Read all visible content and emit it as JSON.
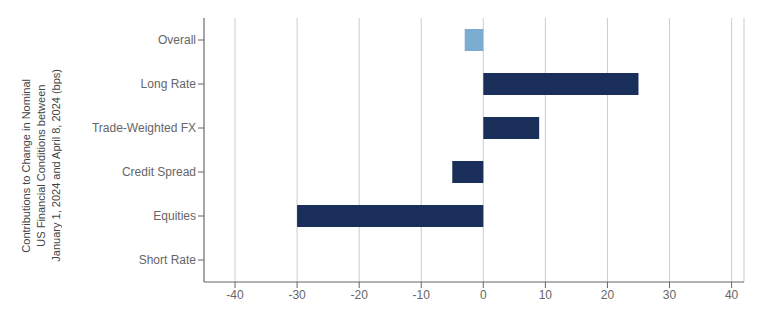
{
  "chart_data": {
    "type": "bar",
    "orientation": "horizontal",
    "ylabel": "Contributions to Change in Nominal\nUS Financial Conditions between\nJanuary 1, 2024 and April 8, 2024 (bps)",
    "categories": [
      "Overall",
      "Long Rate",
      "Trade-Weighted FX",
      "Credit Spread",
      "Equities",
      "Short Rate"
    ],
    "values": [
      -3,
      25,
      9,
      -5,
      -30,
      0
    ],
    "colors": [
      "#7aadcf",
      "#1a2e5a",
      "#1a2e5a",
      "#1a2e5a",
      "#1a2e5a",
      "#1a2e5a"
    ],
    "xlim": [
      -45,
      42
    ],
    "xticks": [
      -40,
      -30,
      -20,
      -10,
      0,
      10,
      20,
      30,
      40
    ],
    "grid": true
  }
}
